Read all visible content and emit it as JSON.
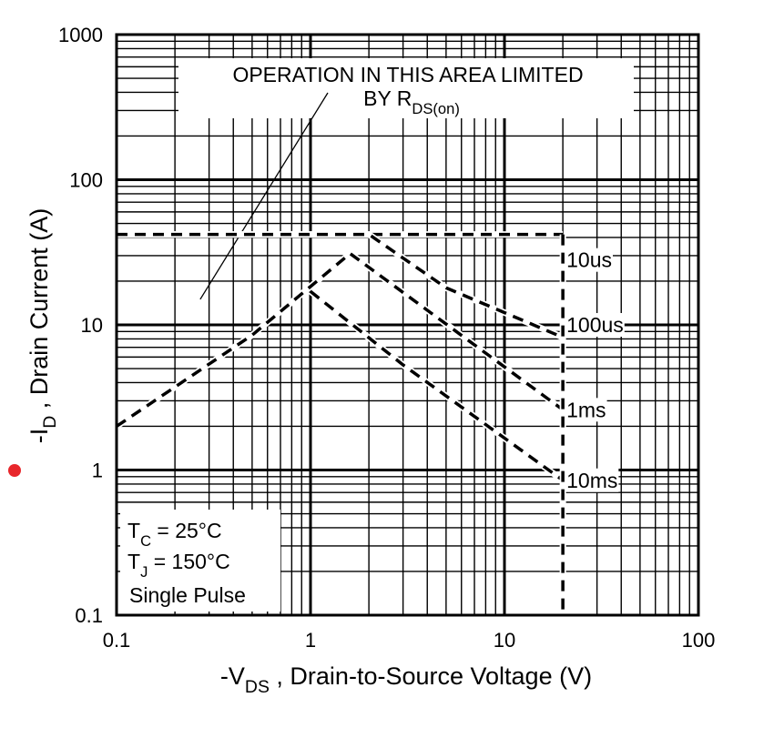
{
  "chart_data": {
    "type": "line",
    "xscale": "log",
    "yscale": "log",
    "xlim": [
      0.1,
      100
    ],
    "ylim": [
      0.1,
      1000
    ],
    "grid": true,
    "x_ticks": [
      "0.1",
      "1",
      "10",
      "100"
    ],
    "y_ticks": [
      "0.1",
      "1",
      "10",
      "100",
      "1000"
    ],
    "xlabel": {
      "pre": "-V",
      "sub": "DS",
      "post": " , Drain-to-Source Voltage (V)"
    },
    "ylabel": {
      "pre": "-I",
      "sub": "D",
      "post": " , Drain Current (A)"
    },
    "annotation": {
      "line1": "OPERATION IN THIS AREA LIMITED",
      "line2_pre": "BY R",
      "line2_sub": "DS(on)"
    },
    "conditions": [
      {
        "pre": "T",
        "sub": "C",
        "post": " = 25°C"
      },
      {
        "pre": "T",
        "sub": "J",
        "post": " = 150°C"
      },
      {
        "pre": "Single Pulse",
        "sub": "",
        "post": ""
      }
    ],
    "rdson_line": {
      "x": [
        0.27,
        1.0
      ],
      "y": [
        15,
        270
      ]
    },
    "series": [
      {
        "name": "10us",
        "x": [
          0.1,
          20
        ],
        "y": [
          42,
          42
        ],
        "label_at": [
          20,
          28
        ]
      },
      {
        "name": "100us",
        "x": [
          0.1,
          2.0,
          5.0,
          20
        ],
        "y": [
          42,
          42,
          18,
          8.2
        ],
        "label_at": [
          20,
          10
        ]
      },
      {
        "name": "1ms",
        "x": [
          0.1,
          0.5,
          1.6,
          20
        ],
        "y": [
          2.0,
          8.5,
          31,
          2.6
        ],
        "label_at": [
          20,
          2.6
        ]
      },
      {
        "name": "10ms",
        "x": [
          1.0,
          3.0,
          20
        ],
        "y": [
          17,
          5.3,
          0.85
        ],
        "label_at": [
          20,
          0.85
        ]
      }
    ],
    "vds_limit": {
      "x": 20,
      "y": [
        0.1,
        42
      ]
    }
  },
  "colors": {
    "line": "#000000",
    "marker": "#e8262b"
  }
}
